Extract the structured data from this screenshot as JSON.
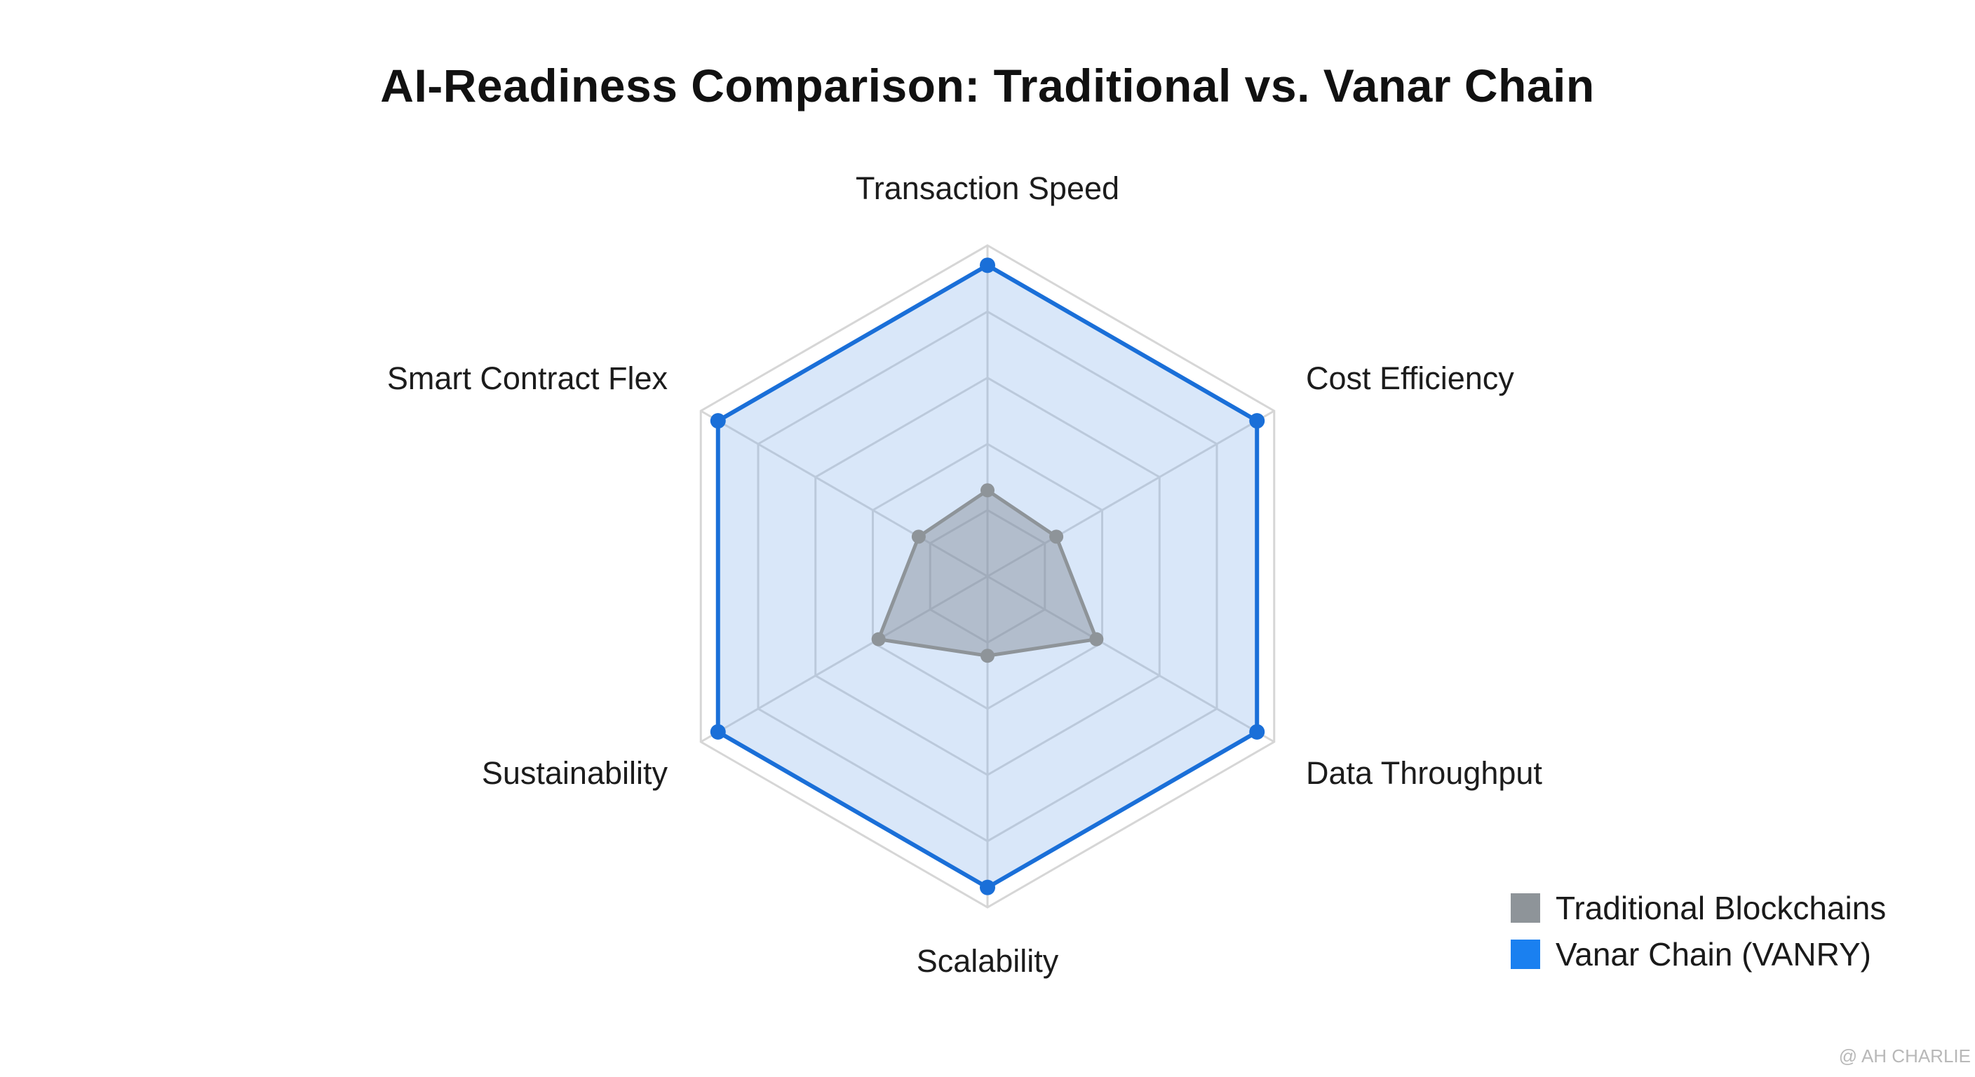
{
  "watermark": "@ AH CHARLIE",
  "chart_data": {
    "type": "radar",
    "title": "AI-Readiness Comparison: Traditional vs. Vanar Chain",
    "axes": [
      "Transaction Speed",
      "Cost Efficiency",
      "Data Throughput",
      "Scalability",
      "Sustainability",
      "Smart Contract Flex"
    ],
    "scale_max": 5,
    "grid_levels": [
      1,
      2,
      3,
      4,
      5
    ],
    "series": [
      {
        "name": "Traditional Blockchains",
        "color": "#8e9499",
        "values": [
          1.3,
          1.2,
          1.9,
          1.2,
          1.9,
          1.2
        ]
      },
      {
        "name": "Vanar Chain (VANRY)",
        "color": "#1a6fd8",
        "values": [
          4.7,
          4.7,
          4.7,
          4.7,
          4.7,
          4.7
        ]
      }
    ],
    "legend_position": "bottom-right",
    "grid": true
  }
}
